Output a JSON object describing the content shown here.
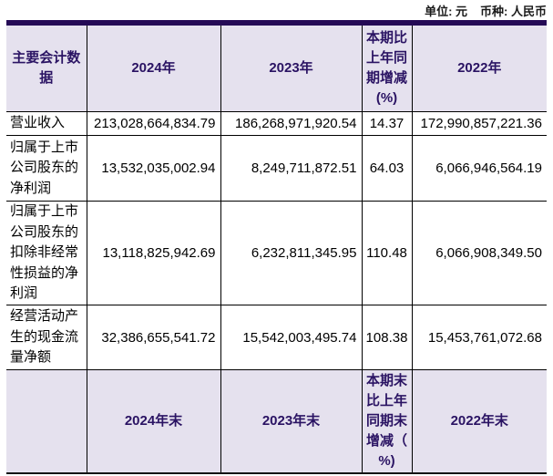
{
  "meta": {
    "unit_label": "单位: 元",
    "currency_label": "币种: 人民币"
  },
  "colors": {
    "table_top_border": "#250a56",
    "header_background": "#e5e1ee",
    "header_text": "#2a1363",
    "body_text": "#000000",
    "inner_border": "#000000"
  },
  "table": {
    "header_top": {
      "col0": "主要会计数\n据",
      "col1": "2024年",
      "col2": "2023年",
      "col3": "本期比\n上年同\n期增减\n(%)",
      "col4": "2022年"
    },
    "rows": [
      {
        "label": "营业收入",
        "y2024": "213,028,664,834.79",
        "y2023": "186,268,971,920.54",
        "change": "14.37",
        "y2022": "172,990,857,221.36"
      },
      {
        "label": "归属于上市\n公司股东的\n净利润",
        "y2024": "13,532,035,002.94",
        "y2023": "8,249,711,872.51",
        "change": "64.03",
        "y2022": "6,066,946,564.19"
      },
      {
        "label": "归属于上市\n公司股东的\n扣除非经常\n性损益的净\n利润",
        "y2024": "13,118,825,942.69",
        "y2023": "6,232,811,345.95",
        "change": "110.48",
        "y2022": "6,066,908,349.50"
      },
      {
        "label": "经营活动产\n生的现金流\n量净额",
        "y2024": "32,386,655,541.72",
        "y2023": "15,542,003,495.74",
        "change": "108.38",
        "y2022": "15,453,761,072.68"
      }
    ],
    "header_bottom": {
      "col0": "",
      "col1": "2024年末",
      "col2": "2023年末",
      "col3": "本期末\n比上年\n同期末\n增减（\n%)",
      "col4": "2022年末"
    }
  }
}
